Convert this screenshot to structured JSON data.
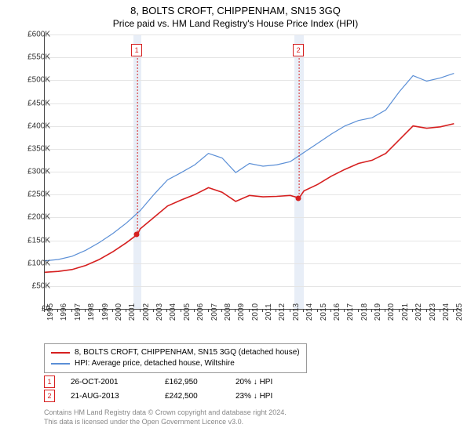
{
  "title": "8, BOLTS CROFT, CHIPPENHAM, SN15 3GQ",
  "subtitle": "Price paid vs. HM Land Registry's House Price Index (HPI)",
  "chart": {
    "type": "line",
    "ylim": [
      0,
      600000
    ],
    "ytick_step": 50000,
    "ytick_labels": [
      "£0",
      "£50K",
      "£100K",
      "£150K",
      "£200K",
      "£250K",
      "£300K",
      "£350K",
      "£400K",
      "£450K",
      "£500K",
      "£550K",
      "£600K"
    ],
    "x_years": [
      1995,
      1996,
      1997,
      1998,
      1999,
      2000,
      2001,
      2002,
      2003,
      2004,
      2005,
      2006,
      2007,
      2008,
      2009,
      2010,
      2011,
      2012,
      2013,
      2014,
      2015,
      2016,
      2017,
      2018,
      2019,
      2020,
      2021,
      2022,
      2023,
      2024,
      2025
    ],
    "x_range": [
      1995,
      2025.5
    ],
    "background_color": "#ffffff",
    "grid_color": "#e5e5e5",
    "series": [
      {
        "name": "property",
        "label": "8, BOLTS CROFT, CHIPPENHAM, SN15 3GQ (detached house)",
        "color": "#d62020",
        "width": 1.6,
        "data": [
          [
            1995,
            80000
          ],
          [
            1996,
            82000
          ],
          [
            1997,
            86000
          ],
          [
            1998,
            95000
          ],
          [
            1999,
            108000
          ],
          [
            2000,
            125000
          ],
          [
            2001,
            145000
          ],
          [
            2001.8,
            162950
          ],
          [
            2002,
            175000
          ],
          [
            2003,
            200000
          ],
          [
            2004,
            225000
          ],
          [
            2005,
            238000
          ],
          [
            2006,
            250000
          ],
          [
            2007,
            265000
          ],
          [
            2008,
            255000
          ],
          [
            2009,
            235000
          ],
          [
            2010,
            248000
          ],
          [
            2011,
            245000
          ],
          [
            2012,
            246000
          ],
          [
            2013,
            248000
          ],
          [
            2013.65,
            242500
          ],
          [
            2014,
            258000
          ],
          [
            2015,
            272000
          ],
          [
            2016,
            290000
          ],
          [
            2017,
            305000
          ],
          [
            2018,
            318000
          ],
          [
            2019,
            325000
          ],
          [
            2020,
            340000
          ],
          [
            2021,
            370000
          ],
          [
            2022,
            400000
          ],
          [
            2023,
            395000
          ],
          [
            2024,
            398000
          ],
          [
            2025,
            405000
          ]
        ]
      },
      {
        "name": "hpi",
        "label": "HPI: Average price, detached house, Wiltshire",
        "color": "#5b8fd6",
        "width": 1.2,
        "data": [
          [
            1995,
            105000
          ],
          [
            1996,
            108000
          ],
          [
            1997,
            115000
          ],
          [
            1998,
            128000
          ],
          [
            1999,
            145000
          ],
          [
            2000,
            165000
          ],
          [
            2001,
            188000
          ],
          [
            2002,
            215000
          ],
          [
            2003,
            250000
          ],
          [
            2004,
            282000
          ],
          [
            2005,
            298000
          ],
          [
            2006,
            315000
          ],
          [
            2007,
            340000
          ],
          [
            2008,
            330000
          ],
          [
            2009,
            298000
          ],
          [
            2010,
            318000
          ],
          [
            2011,
            312000
          ],
          [
            2012,
            315000
          ],
          [
            2013,
            322000
          ],
          [
            2014,
            342000
          ],
          [
            2015,
            362000
          ],
          [
            2016,
            382000
          ],
          [
            2017,
            400000
          ],
          [
            2018,
            412000
          ],
          [
            2019,
            418000
          ],
          [
            2020,
            435000
          ],
          [
            2021,
            475000
          ],
          [
            2022,
            510000
          ],
          [
            2023,
            498000
          ],
          [
            2024,
            505000
          ],
          [
            2025,
            515000
          ]
        ]
      }
    ],
    "bands": [
      {
        "from": 2001.5,
        "to": 2002.1,
        "color": "#e8eef7"
      },
      {
        "from": 2013.3,
        "to": 2014.0,
        "color": "#e8eef7"
      }
    ],
    "markers": [
      {
        "id": "1",
        "x": 2001.8,
        "y_top": 20,
        "color": "#d62020",
        "point_y": 162950
      },
      {
        "id": "2",
        "x": 2013.65,
        "y_top": 20,
        "color": "#d62020",
        "point_y": 242500
      }
    ]
  },
  "legend": {
    "items": [
      {
        "series": "property"
      },
      {
        "series": "hpi"
      }
    ]
  },
  "transactions": [
    {
      "id": "1",
      "date": "26-OCT-2001",
      "price": "£162,950",
      "diff": "20% ↓ HPI",
      "color": "#d62020"
    },
    {
      "id": "2",
      "date": "21-AUG-2013",
      "price": "£242,500",
      "diff": "23% ↓ HPI",
      "color": "#d62020"
    }
  ],
  "footnote_line1": "Contains HM Land Registry data © Crown copyright and database right 2024.",
  "footnote_line2": "This data is licensed under the Open Government Licence v3.0."
}
